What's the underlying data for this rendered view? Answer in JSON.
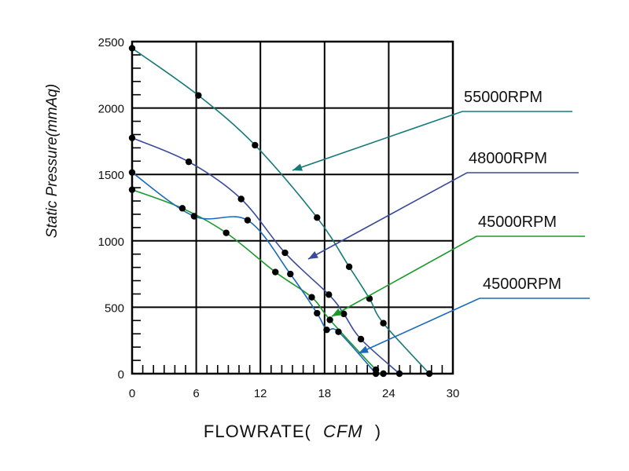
{
  "chart_data": {
    "type": "line",
    "title": "",
    "ylabel": "Static Pressure(mmAq)",
    "xlabel": {
      "prefix": "FLOWRATE(",
      "unit": "CFM",
      "suffix": ")"
    },
    "xlim": [
      0,
      30
    ],
    "ylim": [
      0,
      2500
    ],
    "x_ticks": [
      "0",
      "6",
      "12",
      "18",
      "24",
      "30"
    ],
    "y_ticks": [
      "0",
      "500",
      "1000",
      "1500",
      "2000",
      "2500"
    ],
    "grid": true,
    "series": [
      {
        "name": "55000RPM",
        "color": "#167a7a",
        "points": [
          [
            0,
            2450
          ],
          [
            6.2,
            2095
          ],
          [
            11.5,
            1720
          ],
          [
            17.3,
            1175
          ],
          [
            20.3,
            805
          ],
          [
            22.2,
            565
          ],
          [
            23.5,
            380
          ],
          [
            27.8,
            0
          ]
        ]
      },
      {
        "name": "48000RPM",
        "color": "#3a4a9a",
        "points": [
          [
            0,
            1775
          ],
          [
            5.3,
            1595
          ],
          [
            10.2,
            1315
          ],
          [
            14.3,
            910
          ],
          [
            18.4,
            595
          ],
          [
            19.8,
            450
          ],
          [
            21.4,
            260
          ],
          [
            25.0,
            0
          ]
        ]
      },
      {
        "name": "45000RPM",
        "color": "#1a9a2a",
        "points": [
          [
            0,
            1385
          ],
          [
            4.7,
            1245
          ],
          [
            8.8,
            1060
          ],
          [
            13.4,
            765
          ],
          [
            16.8,
            575
          ],
          [
            18.5,
            405
          ],
          [
            22.8,
            30
          ],
          [
            23.5,
            0
          ]
        ]
      },
      {
        "name": "45000RPM",
        "color": "#1a6ab8",
        "points": [
          [
            0,
            1515
          ],
          [
            5.8,
            1185
          ],
          [
            10.8,
            1155
          ],
          [
            14.8,
            750
          ],
          [
            17.3,
            455
          ],
          [
            18.2,
            330
          ],
          [
            19.3,
            315
          ],
          [
            22.8,
            0
          ]
        ]
      }
    ]
  }
}
